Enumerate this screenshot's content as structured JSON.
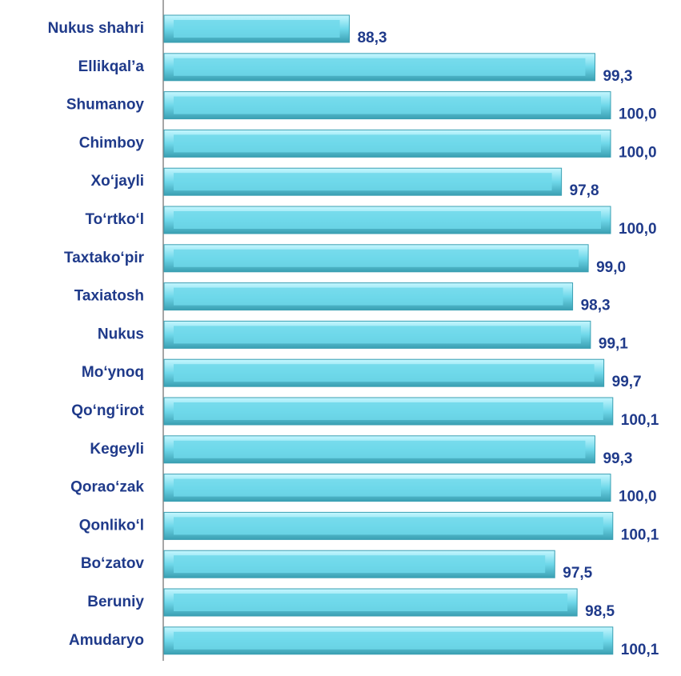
{
  "chart_data": {
    "type": "barh",
    "categories": [
      "Nukus shahri",
      "Ellikqal’a",
      "Shumanoy",
      "Chimboy",
      "Xo‘jayli",
      "To‘rtko‘l",
      "Taxtako‘pir",
      "Taxiatosh",
      "Nukus",
      "Mo‘ynoq",
      "Qo‘ng‘irot",
      "Kegeyli",
      "Qorao‘zak",
      "Qonliko‘l",
      "Bo‘zatov",
      "Beruniy",
      "Amudaryo"
    ],
    "values": [
      88.3,
      99.3,
      100.0,
      100.0,
      97.8,
      100.0,
      99.0,
      98.3,
      99.1,
      99.7,
      100.1,
      99.3,
      100.0,
      100.1,
      97.5,
      98.5,
      100.1
    ],
    "value_labels": [
      "88,3",
      "99,3",
      "100,0",
      "100,0",
      "97,8",
      "100,0",
      "99,0",
      "98,3",
      "99,1",
      "99,7",
      "100,1",
      "99,3",
      "100,0",
      "100,1",
      "97,5",
      "98,5",
      "100,1"
    ],
    "color": "#6fd8ea",
    "xlim": [
      80,
      102
    ]
  }
}
